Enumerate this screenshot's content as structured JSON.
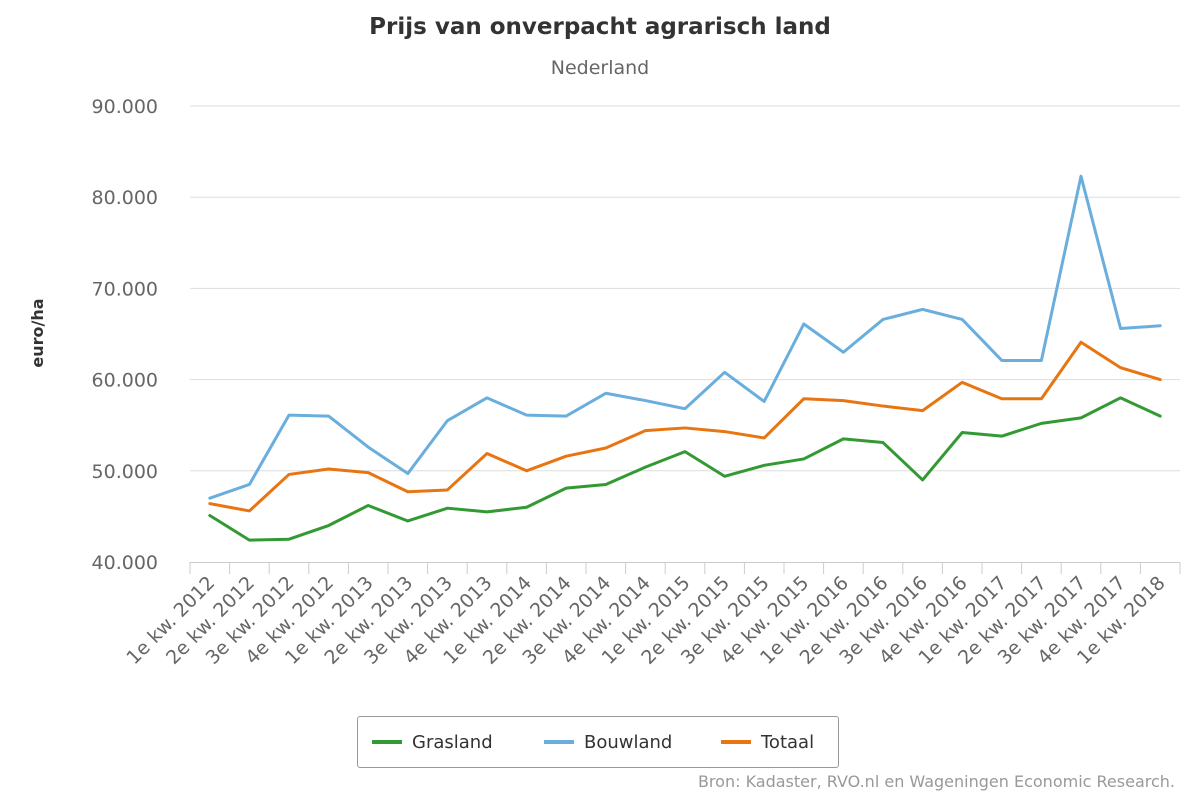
{
  "title": "Prijs van onverpacht agrarisch land",
  "subtitle": "Nederland",
  "credits": "Bron: Kadaster, RVO.nl en Wageningen Economic Research.",
  "chart_data": {
    "type": "line",
    "title": "Prijs van onverpacht agrarisch land",
    "subtitle": "Nederland",
    "ylabel": "euro/ha",
    "xlabel": "",
    "ylim": [
      40000,
      90000
    ],
    "yticks": [
      40000,
      50000,
      60000,
      70000,
      80000,
      90000
    ],
    "ytick_labels": [
      "40.000",
      "50.000",
      "60.000",
      "70.000",
      "80.000",
      "90.000"
    ],
    "grid": true,
    "legend_position": "bottom-center",
    "categories": [
      "1e kw. 2012",
      "2e kw. 2012",
      "3e kw. 2012",
      "4e kw. 2012",
      "1e kw. 2013",
      "2e kw. 2013",
      "3e kw. 2013",
      "4e kw. 2013",
      "1e kw. 2014",
      "2e kw. 2014",
      "3e kw. 2014",
      "4e kw. 2014",
      "1e kw. 2015",
      "2e kw. 2015",
      "3e kw. 2015",
      "4e kw. 2015",
      "1e kw. 2016",
      "2e kw. 2016",
      "3e kw. 2016",
      "4e kw. 2016",
      "1e kw. 2017",
      "2e kw. 2017",
      "3e kw. 2017",
      "4e kw. 2017",
      "1e kw. 2018"
    ],
    "series": [
      {
        "name": "Grasland",
        "color": "#339933",
        "values": [
          45100,
          42400,
          42500,
          44000,
          46200,
          44500,
          45900,
          45500,
          46000,
          48100,
          48500,
          50400,
          52100,
          49400,
          50600,
          51300,
          53500,
          53100,
          49000,
          54200,
          53800,
          55200,
          55800,
          58000,
          56000
        ]
      },
      {
        "name": "Bouwland",
        "color": "#6aaede",
        "values": [
          47000,
          48500,
          56100,
          56000,
          52600,
          49700,
          55500,
          58000,
          56100,
          56000,
          58500,
          57700,
          56800,
          60800,
          57600,
          66100,
          63000,
          66600,
          67700,
          66600,
          62100,
          62100,
          82300,
          65600,
          65900
        ]
      },
      {
        "name": "Totaal",
        "color": "#e87511",
        "values": [
          46400,
          45600,
          49600,
          50200,
          49800,
          47700,
          47900,
          51900,
          50000,
          51600,
          52500,
          54400,
          54700,
          54300,
          53600,
          57900,
          57700,
          57100,
          56600,
          59700,
          57900,
          57900,
          64100,
          61300,
          60000
        ]
      }
    ]
  }
}
